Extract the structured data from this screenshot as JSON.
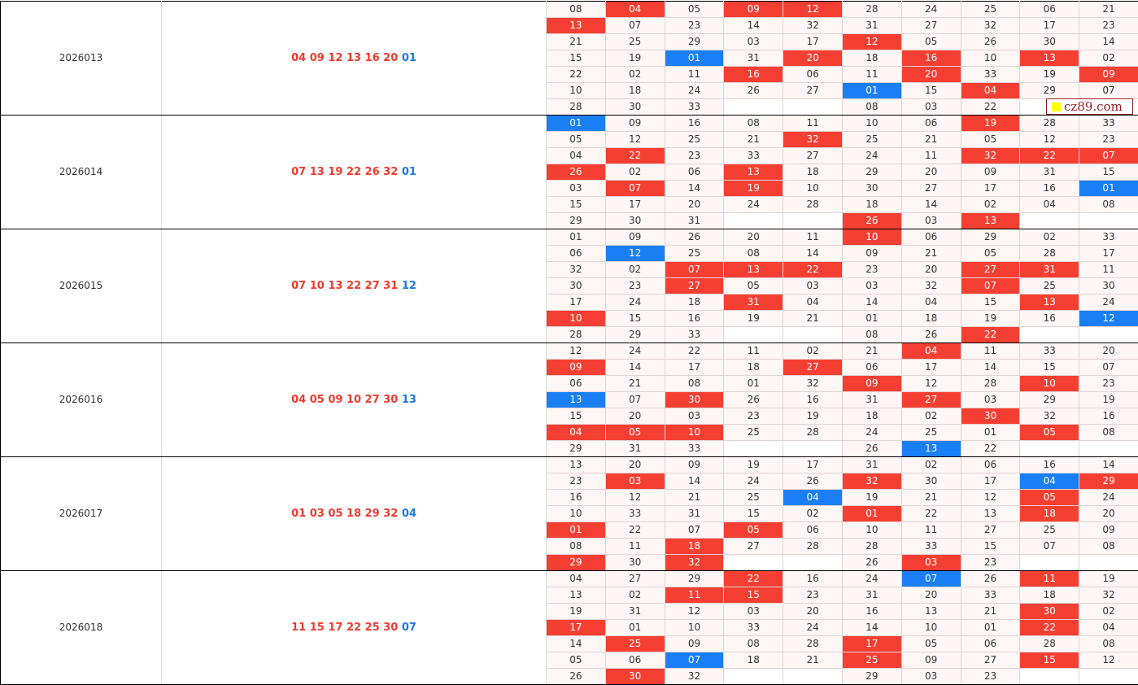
{
  "logo": {
    "text": "cz89.com"
  },
  "colors": {
    "red": "#f63f33",
    "blue": "#1a7ff5"
  },
  "periods": [
    {
      "id": "2026013",
      "red": "04 09 12 13 16 20",
      "blue": "01",
      "rows": [
        [
          "08",
          "04",
          "05",
          "09",
          "12",
          "28",
          "24",
          "25",
          "06",
          "21"
        ],
        [
          "13",
          "07",
          "23",
          "14",
          "32",
          "31",
          "27",
          "32",
          "17",
          "23"
        ],
        [
          "21",
          "25",
          "29",
          "03",
          "17",
          "12",
          "05",
          "26",
          "30",
          "14"
        ],
        [
          "15",
          "19",
          "01",
          "31",
          "20",
          "18",
          "16",
          "10",
          "13",
          "02"
        ],
        [
          "22",
          "02",
          "11",
          "16",
          "06",
          "11",
          "20",
          "33",
          "19",
          "09"
        ],
        [
          "10",
          "18",
          "24",
          "26",
          "27",
          "01",
          "15",
          "04",
          "29",
          "07"
        ],
        [
          "28",
          "30",
          "33",
          "",
          "",
          "08",
          "03",
          "22",
          "",
          ""
        ]
      ],
      "marks": [
        "-r-rr-----",
        "r---------",
        "-----r----",
        "--b-r-r-r-",
        "---r--r--r",
        "-----b-r--",
        "---ee---ee"
      ]
    },
    {
      "id": "2026014",
      "red": "07 13 19 22 26 32",
      "blue": "01",
      "rows": [
        [
          "01",
          "09",
          "16",
          "08",
          "11",
          "10",
          "06",
          "19",
          "28",
          "33"
        ],
        [
          "05",
          "12",
          "25",
          "21",
          "32",
          "25",
          "21",
          "05",
          "12",
          "23"
        ],
        [
          "04",
          "22",
          "23",
          "33",
          "27",
          "24",
          "11",
          "32",
          "22",
          "07"
        ],
        [
          "26",
          "02",
          "06",
          "13",
          "18",
          "29",
          "20",
          "09",
          "31",
          "15"
        ],
        [
          "03",
          "07",
          "14",
          "19",
          "10",
          "30",
          "27",
          "17",
          "16",
          "01"
        ],
        [
          "15",
          "17",
          "20",
          "24",
          "28",
          "18",
          "14",
          "02",
          "04",
          "08"
        ],
        [
          "29",
          "30",
          "31",
          "",
          "",
          "26",
          "03",
          "13",
          "",
          ""
        ]
      ],
      "marks": [
        "b------r--",
        "----r-----",
        "-r-----rrr",
        "r--r------",
        "-r-r-----b",
        "----------",
        "---eer-ree"
      ]
    },
    {
      "id": "2026015",
      "red": "07 10 13 22 27 31",
      "blue": "12",
      "rows": [
        [
          "01",
          "09",
          "26",
          "20",
          "11",
          "10",
          "06",
          "29",
          "02",
          "33"
        ],
        [
          "06",
          "12",
          "25",
          "08",
          "14",
          "09",
          "21",
          "05",
          "28",
          "17"
        ],
        [
          "32",
          "02",
          "07",
          "13",
          "22",
          "23",
          "20",
          "27",
          "31",
          "11"
        ],
        [
          "30",
          "23",
          "27",
          "05",
          "03",
          "03",
          "32",
          "07",
          "25",
          "30"
        ],
        [
          "17",
          "24",
          "18",
          "31",
          "04",
          "14",
          "04",
          "15",
          "13",
          "24"
        ],
        [
          "10",
          "15",
          "16",
          "19",
          "21",
          "01",
          "18",
          "19",
          "16",
          "12"
        ],
        [
          "28",
          "29",
          "33",
          "",
          "",
          "08",
          "26",
          "22",
          "",
          ""
        ]
      ],
      "marks": [
        "-----r----",
        "-b--------",
        "--rrr--rr-",
        "--r----r--",
        "---r----r-",
        "r--------b",
        "---ee--ree"
      ]
    },
    {
      "id": "2026016",
      "red": "04 05 09 10 27 30",
      "blue": "13",
      "rows": [
        [
          "12",
          "24",
          "22",
          "11",
          "02",
          "21",
          "04",
          "11",
          "33",
          "20"
        ],
        [
          "09",
          "14",
          "17",
          "18",
          "27",
          "06",
          "17",
          "14",
          "15",
          "07"
        ],
        [
          "06",
          "21",
          "08",
          "01",
          "32",
          "09",
          "12",
          "28",
          "10",
          "23"
        ],
        [
          "13",
          "07",
          "30",
          "26",
          "16",
          "31",
          "27",
          "03",
          "29",
          "19"
        ],
        [
          "15",
          "20",
          "03",
          "23",
          "19",
          "18",
          "02",
          "30",
          "32",
          "16"
        ],
        [
          "04",
          "05",
          "10",
          "25",
          "28",
          "24",
          "25",
          "01",
          "05",
          "08"
        ],
        [
          "29",
          "31",
          "33",
          "",
          "",
          "26",
          "13",
          "22",
          "",
          ""
        ]
      ],
      "marks": [
        "------r---",
        "r---r-----",
        "-----r--r-",
        "b-r---r---",
        "-------r--",
        "rrr-----r-",
        "---ee-b-ee"
      ]
    },
    {
      "id": "2026017",
      "red": "01 03 05 18 29 32",
      "blue": "04",
      "rows": [
        [
          "13",
          "20",
          "09",
          "19",
          "17",
          "31",
          "02",
          "06",
          "16",
          "14"
        ],
        [
          "23",
          "03",
          "14",
          "24",
          "26",
          "32",
          "30",
          "17",
          "04",
          "29"
        ],
        [
          "16",
          "12",
          "21",
          "25",
          "04",
          "19",
          "21",
          "12",
          "05",
          "24"
        ],
        [
          "10",
          "33",
          "31",
          "15",
          "02",
          "01",
          "22",
          "13",
          "18",
          "20"
        ],
        [
          "01",
          "22",
          "07",
          "05",
          "06",
          "10",
          "11",
          "27",
          "25",
          "09"
        ],
        [
          "08",
          "11",
          "18",
          "27",
          "28",
          "28",
          "33",
          "15",
          "07",
          "08"
        ],
        [
          "29",
          "30",
          "32",
          "",
          "",
          "26",
          "03",
          "23",
          "",
          ""
        ]
      ],
      "marks": [
        "----------",
        "-r---r--br",
        "----b---r-",
        "-----r--r-",
        "r--r------",
        "--r-------",
        "r-ree-r-ee"
      ]
    },
    {
      "id": "2026018",
      "red": "11 15 17 22 25 30",
      "blue": "07",
      "rows": [
        [
          "04",
          "27",
          "29",
          "22",
          "16",
          "24",
          "07",
          "26",
          "11",
          "19"
        ],
        [
          "13",
          "02",
          "11",
          "15",
          "23",
          "31",
          "20",
          "33",
          "18",
          "32"
        ],
        [
          "19",
          "31",
          "12",
          "03",
          "20",
          "16",
          "13",
          "21",
          "30",
          "02"
        ],
        [
          "17",
          "01",
          "10",
          "33",
          "24",
          "14",
          "10",
          "01",
          "22",
          "04"
        ],
        [
          "14",
          "25",
          "09",
          "08",
          "28",
          "17",
          "05",
          "06",
          "28",
          "08"
        ],
        [
          "05",
          "06",
          "07",
          "18",
          "21",
          "25",
          "09",
          "27",
          "15",
          "12"
        ],
        [
          "26",
          "30",
          "32",
          "",
          "",
          "29",
          "03",
          "23",
          "",
          ""
        ]
      ],
      "marks": [
        "---r--b-r-",
        "--rr------",
        "--------r-",
        "r-------r-",
        "-r---r----",
        "--b--r--r-",
        "-r-ee---ee"
      ]
    }
  ]
}
